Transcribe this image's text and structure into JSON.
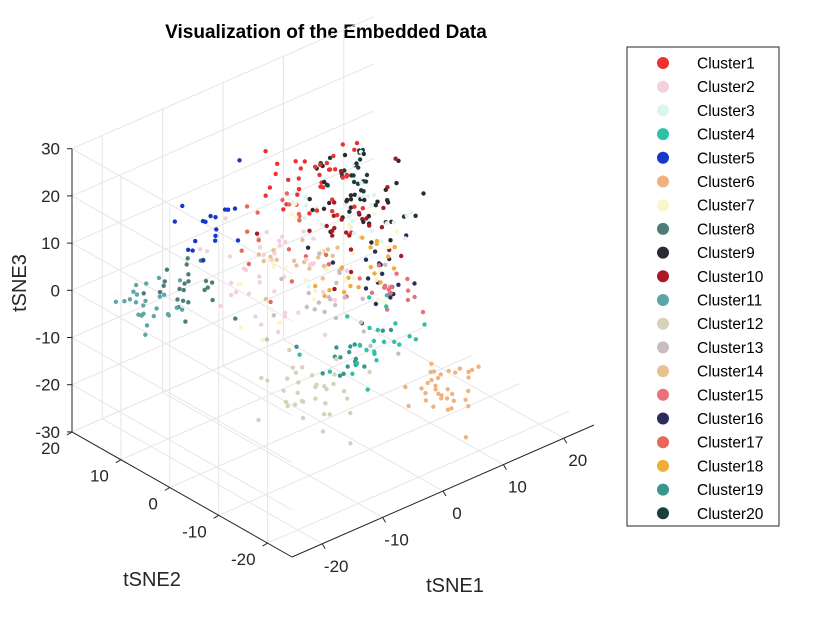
{
  "chart_data": {
    "type": "scatter3d",
    "title": "Visualization of the Embedded Data",
    "xlabel": "tSNE1",
    "ylabel": "tSNE2",
    "zlabel": "tSNE3",
    "xlim": [
      -25,
      25
    ],
    "ylim": [
      -25,
      20
    ],
    "zlim": [
      -30,
      30
    ],
    "xticks": [
      -20,
      -10,
      0,
      10,
      20
    ],
    "yticks": [
      -20,
      -10,
      0,
      10,
      20
    ],
    "zticks": [
      -30,
      -20,
      -10,
      0,
      10,
      20,
      30
    ],
    "grid": true,
    "legend_position": "right",
    "series": [
      {
        "name": "Cluster1",
        "color": "#ee3030",
        "center": [
          5,
          8,
          14
        ],
        "spread": [
          6,
          6,
          7
        ],
        "n": 40
      },
      {
        "name": "Cluster2",
        "color": "#f3d0dc",
        "center": [
          -4,
          4,
          0
        ],
        "spread": [
          8,
          8,
          8
        ],
        "n": 40
      },
      {
        "name": "Cluster3",
        "color": "#dcf4ee",
        "center": [
          10,
          6,
          6
        ],
        "spread": [
          8,
          8,
          8
        ],
        "n": 30
      },
      {
        "name": "Cluster4",
        "color": "#2ec1a5",
        "center": [
          2,
          -8,
          -10
        ],
        "spread": [
          6,
          4,
          5
        ],
        "n": 25
      },
      {
        "name": "Cluster5",
        "color": "#1637c8",
        "center": [
          -10,
          8,
          12
        ],
        "spread": [
          5,
          4,
          6
        ],
        "n": 18
      },
      {
        "name": "Cluster6",
        "color": "#f2b27e",
        "center": [
          12,
          -12,
          -22
        ],
        "spread": [
          5,
          4,
          4
        ],
        "n": 35
      },
      {
        "name": "Cluster7",
        "color": "#fbf5cc",
        "center": [
          0,
          0,
          0
        ],
        "spread": [
          10,
          9,
          10
        ],
        "n": 30
      },
      {
        "name": "Cluster8",
        "color": "#4e7d79",
        "center": [
          -12,
          14,
          -2
        ],
        "spread": [
          5,
          5,
          6
        ],
        "n": 25
      },
      {
        "name": "Cluster9",
        "color": "#2a2a30",
        "center": [
          14,
          10,
          2
        ],
        "spread": [
          6,
          6,
          7
        ],
        "n": 45
      },
      {
        "name": "Cluster10",
        "color": "#a81b24",
        "center": [
          6,
          2,
          8
        ],
        "spread": [
          7,
          6,
          7
        ],
        "n": 25
      },
      {
        "name": "Cluster11",
        "color": "#5ea6a6",
        "center": [
          -20,
          12,
          0
        ],
        "spread": [
          4,
          4,
          3
        ],
        "n": 25
      },
      {
        "name": "Cluster12",
        "color": "#d6d2b8",
        "center": [
          -8,
          -6,
          -16
        ],
        "spread": [
          5,
          5,
          5
        ],
        "n": 35
      },
      {
        "name": "Cluster13",
        "color": "#c9bcc4",
        "center": [
          -2,
          -4,
          -4
        ],
        "spread": [
          8,
          8,
          8
        ],
        "n": 25
      },
      {
        "name": "Cluster14",
        "color": "#e6c28e",
        "center": [
          4,
          6,
          -2
        ],
        "spread": [
          6,
          6,
          6
        ],
        "n": 20
      },
      {
        "name": "Cluster15",
        "color": "#e8707a",
        "center": [
          10,
          -2,
          -6
        ],
        "spread": [
          5,
          5,
          5
        ],
        "n": 18
      },
      {
        "name": "Cluster16",
        "color": "#2b2c5e",
        "center": [
          12,
          4,
          -8
        ],
        "spread": [
          5,
          5,
          5
        ],
        "n": 18
      },
      {
        "name": "Cluster17",
        "color": "#e5685a",
        "center": [
          -2,
          8,
          6
        ],
        "spread": [
          7,
          7,
          7
        ],
        "n": 18
      },
      {
        "name": "Cluster18",
        "color": "#f2ad34",
        "center": [
          6,
          0,
          0
        ],
        "spread": [
          5,
          5,
          4
        ],
        "n": 18
      },
      {
        "name": "Cluster19",
        "color": "#3a958c",
        "center": [
          0,
          -6,
          -14
        ],
        "spread": [
          5,
          4,
          4
        ],
        "n": 18
      },
      {
        "name": "Cluster20",
        "color": "#18403e",
        "center": [
          16,
          14,
          4
        ],
        "spread": [
          4,
          4,
          4
        ],
        "n": 18
      }
    ]
  }
}
